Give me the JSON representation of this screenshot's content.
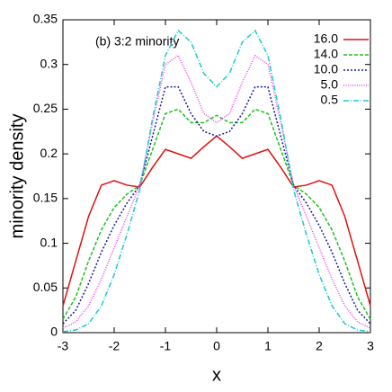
{
  "chart_data": {
    "type": "line",
    "annotation": "(b) 3:2 minority",
    "x_label": "x",
    "y_label": "minority density",
    "xlim": [
      -3,
      3
    ],
    "ylim": [
      0,
      0.35
    ],
    "xticks": [
      -3,
      -2,
      -1,
      0,
      1,
      2,
      3
    ],
    "yticks": [
      0,
      0.05,
      0.1,
      0.15,
      0.2,
      0.25,
      0.3,
      0.35
    ],
    "legend": "top-right",
    "x": [
      -3,
      -2.75,
      -2.5,
      -2.25,
      -2,
      -1.75,
      -1.5,
      -1.25,
      -1,
      -0.75,
      -0.5,
      -0.25,
      0,
      0.25,
      0.5,
      0.75,
      1,
      1.25,
      1.5,
      1.75,
      2,
      2.25,
      2.5,
      2.75,
      3
    ],
    "series": [
      {
        "name": "16.0",
        "color": "#e01010",
        "dash": "none",
        "values": [
          0.03,
          0.08,
          0.13,
          0.165,
          0.17,
          0.165,
          0.163,
          0.185,
          0.205,
          0.2,
          0.195,
          0.208,
          0.22,
          0.208,
          0.195,
          0.2,
          0.205,
          0.185,
          0.163,
          0.165,
          0.17,
          0.165,
          0.13,
          0.08,
          0.03
        ]
      },
      {
        "name": "14.0",
        "color": "#20c020",
        "dash": "4 2",
        "values": [
          0.015,
          0.04,
          0.08,
          0.115,
          0.14,
          0.155,
          0.165,
          0.205,
          0.245,
          0.25,
          0.235,
          0.235,
          0.243,
          0.235,
          0.235,
          0.25,
          0.245,
          0.205,
          0.165,
          0.155,
          0.14,
          0.115,
          0.08,
          0.04,
          0.015
        ]
      },
      {
        "name": "10.0",
        "color": "#1a1aa0",
        "dash": "2 2",
        "values": [
          0.01,
          0.025,
          0.055,
          0.09,
          0.12,
          0.145,
          0.165,
          0.22,
          0.275,
          0.275,
          0.245,
          0.225,
          0.22,
          0.225,
          0.245,
          0.275,
          0.275,
          0.22,
          0.165,
          0.145,
          0.12,
          0.09,
          0.055,
          0.025,
          0.01
        ]
      },
      {
        "name": "5.0",
        "color": "#ee40ee",
        "dash": "1 1.5",
        "values": [
          0.005,
          0.012,
          0.03,
          0.06,
          0.095,
          0.13,
          0.165,
          0.235,
          0.3,
          0.31,
          0.28,
          0.245,
          0.235,
          0.245,
          0.28,
          0.31,
          0.3,
          0.235,
          0.165,
          0.13,
          0.095,
          0.06,
          0.03,
          0.012,
          0.005
        ]
      },
      {
        "name": "0.5",
        "color": "#20c8d0",
        "dash": "6 2 1 2",
        "values": [
          0.001,
          0.003,
          0.01,
          0.03,
          0.065,
          0.11,
          0.16,
          0.24,
          0.31,
          0.338,
          0.325,
          0.29,
          0.275,
          0.29,
          0.325,
          0.338,
          0.31,
          0.24,
          0.16,
          0.11,
          0.065,
          0.03,
          0.01,
          0.003,
          0.001
        ]
      }
    ]
  }
}
